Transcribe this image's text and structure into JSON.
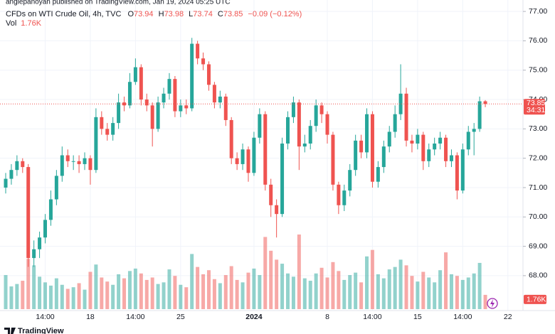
{
  "chart_data": {
    "type": "candlestick",
    "published": "anglepanoyan published on TradingView.com, Jan 19, 2024 05:25 UTC",
    "title": "CFDs on WTI Crude Oil, 4h, TVC",
    "ohlc_labels": [
      "O",
      "H",
      "L",
      "C"
    ],
    "change": "−0.09 (−0.12%)",
    "volume_title": "Vol",
    "volume_label": "1.76K",
    "countdown": "34:31",
    "brand": "TradingView",
    "up_color": "#26a69a",
    "down_color": "#ef5350",
    "grid": true,
    "ylim": [
      66.86,
      77.39
    ],
    "yticks": [
      {
        "value": 68,
        "label": "68.00"
      },
      {
        "value": 69,
        "label": "69.00"
      },
      {
        "value": 70,
        "label": "70.00"
      },
      {
        "value": 71,
        "label": "71.00"
      },
      {
        "value": 72,
        "label": "72.00"
      },
      {
        "value": 73,
        "label": "73.00"
      },
      {
        "value": 74,
        "label": "74.00"
      },
      {
        "value": 75,
        "label": "75.00"
      },
      {
        "value": 76,
        "label": "76.00"
      },
      {
        "value": 77,
        "label": "77.00"
      }
    ],
    "xticks": [
      {
        "value": 7,
        "label": "14:00"
      },
      {
        "value": 15,
        "label": "18"
      },
      {
        "value": 23,
        "label": "14:00"
      },
      {
        "value": 31,
        "label": "25"
      },
      {
        "value": 44,
        "label": "2024"
      },
      {
        "value": 57,
        "label": "8"
      },
      {
        "value": 65,
        "label": "14:00"
      },
      {
        "value": 73,
        "label": "15"
      },
      {
        "value": 81,
        "label": "14:00"
      },
      {
        "value": 89,
        "label": "22"
      }
    ],
    "open": [
      71.0,
      71.3,
      71.6,
      71.9,
      71.7,
      68.6,
      68.9,
      69.3,
      69.9,
      70.6,
      71.4,
      72.1,
      71.9,
      71.9,
      71.8,
      72.0,
      71.6,
      73.4,
      73.0,
      72.8,
      73.2,
      73.9,
      73.8,
      74.6,
      75.1,
      74.0,
      73.8,
      73.0,
      73.9,
      74.2,
      74.7,
      73.6,
      73.8,
      73.7,
      75.9,
      75.4,
      75.2,
      74.5,
      73.9,
      74.1,
      73.3,
      72.0,
      71.8,
      72.3,
      71.5,
      72.7,
      73.5,
      71.1,
      70.4,
      70.1,
      72.5,
      73.4,
      73.9,
      72.4,
      72.5,
      73.1,
      73.8,
      73.5,
      72.8,
      71.1,
      70.4,
      70.9,
      71.6,
      72.6,
      72.2,
      73.5,
      71.2,
      71.7,
      72.4,
      72.9,
      73.5,
      74.2,
      72.6,
      72.5,
      72.8,
      71.9,
      72.3,
      72.5,
      72.7,
      71.9,
      72.1,
      70.9,
      72.3,
      72.9,
      73.0,
      73.94
    ],
    "high": [
      71.5,
      71.8,
      72.1,
      72.0,
      71.8,
      69.2,
      69.5,
      70.1,
      70.9,
      71.6,
      72.4,
      72.3,
      72.1,
      72.1,
      72.2,
      72.1,
      73.7,
      73.6,
      73.2,
      73.4,
      74.2,
      74.1,
      74.9,
      75.4,
      75.2,
      74.2,
      73.9,
      74.1,
      74.4,
      74.9,
      74.8,
      74.0,
      74.0,
      76.1,
      76.0,
      75.6,
      75.3,
      74.6,
      74.3,
      74.2,
      73.4,
      72.2,
      72.5,
      72.4,
      72.9,
      73.7,
      73.6,
      71.3,
      70.6,
      72.7,
      73.6,
      74.1,
      74.0,
      72.8,
      73.3,
      74.0,
      73.9,
      73.6,
      72.9,
      71.2,
      71.1,
      71.8,
      72.8,
      72.8,
      73.7,
      73.6,
      71.9,
      72.6,
      73.1,
      73.8,
      75.2,
      74.4,
      72.8,
      73.0,
      72.9,
      72.5,
      72.7,
      72.9,
      72.8,
      72.3,
      72.2,
      72.5,
      73.1,
      73.2,
      74.1,
      73.98
    ],
    "low": [
      70.8,
      71.1,
      71.4,
      71.5,
      68.3,
      68.3,
      68.6,
      69.1,
      69.7,
      70.4,
      71.2,
      71.7,
      71.6,
      71.5,
      71.6,
      71.1,
      71.5,
      72.8,
      72.6,
      72.6,
      73.0,
      73.6,
      73.7,
      74.5,
      73.8,
      73.6,
      72.4,
      72.9,
      73.7,
      74.0,
      73.4,
      73.4,
      73.5,
      73.6,
      75.2,
      75.0,
      74.3,
      73.7,
      73.7,
      73.1,
      71.8,
      71.6,
      71.6,
      71.2,
      71.4,
      72.5,
      70.9,
      70.0,
      69.3,
      70.0,
      72.3,
      73.2,
      71.6,
      72.2,
      72.3,
      72.9,
      73.2,
      72.5,
      70.9,
      70.1,
      70.2,
      70.7,
      71.4,
      72.0,
      72.0,
      71.0,
      71.0,
      71.5,
      72.2,
      72.7,
      73.3,
      72.4,
      72.2,
      72.3,
      71.6,
      71.7,
      72.1,
      72.3,
      71.7,
      71.7,
      70.6,
      70.8,
      72.1,
      72.1,
      72.9,
      73.74
    ],
    "close": [
      71.3,
      71.6,
      71.9,
      71.7,
      68.6,
      68.9,
      69.3,
      69.9,
      70.6,
      71.4,
      72.1,
      71.9,
      71.9,
      71.8,
      72.0,
      71.6,
      73.4,
      73.0,
      72.8,
      73.2,
      73.9,
      73.8,
      74.6,
      75.1,
      74.0,
      73.8,
      73.0,
      73.9,
      74.2,
      74.7,
      73.6,
      73.8,
      73.7,
      75.9,
      75.4,
      75.2,
      74.5,
      73.9,
      74.1,
      73.3,
      72.0,
      71.8,
      72.3,
      71.5,
      72.7,
      73.5,
      71.1,
      70.4,
      70.1,
      72.5,
      73.4,
      73.9,
      72.4,
      72.5,
      73.1,
      73.8,
      73.5,
      72.8,
      71.1,
      70.4,
      70.9,
      71.6,
      72.6,
      72.2,
      73.5,
      71.2,
      71.7,
      72.4,
      72.9,
      73.5,
      74.2,
      72.6,
      72.5,
      72.8,
      71.9,
      72.3,
      72.5,
      72.7,
      71.9,
      72.1,
      70.9,
      72.3,
      72.9,
      73.0,
      73.94,
      73.85
    ],
    "volume": [
      4200,
      2800,
      3100,
      3500,
      6200,
      5400,
      4000,
      3300,
      2900,
      3800,
      3000,
      2500,
      2700,
      3200,
      2400,
      4600,
      5500,
      3900,
      3400,
      3000,
      4300,
      3800,
      4700,
      5000,
      4400,
      3600,
      3900,
      3100,
      3300,
      4900,
      4100,
      3000,
      2700,
      6800,
      5200,
      4300,
      4800,
      3700,
      3200,
      4200,
      5300,
      3600,
      3300,
      4500,
      5000,
      4200,
      8900,
      7200,
      6100,
      5600,
      4400,
      4000,
      9200,
      3800,
      3500,
      4400,
      5100,
      3900,
      5800,
      4700,
      3600,
      4200,
      4500,
      3300,
      6500,
      7300,
      4300,
      3800,
      4900,
      5200,
      6100,
      5400,
      4100,
      3400,
      4600,
      3900,
      3300,
      4800,
      7000,
      4300,
      4100,
      3600,
      3900,
      4400,
      5700,
      1760
    ]
  }
}
